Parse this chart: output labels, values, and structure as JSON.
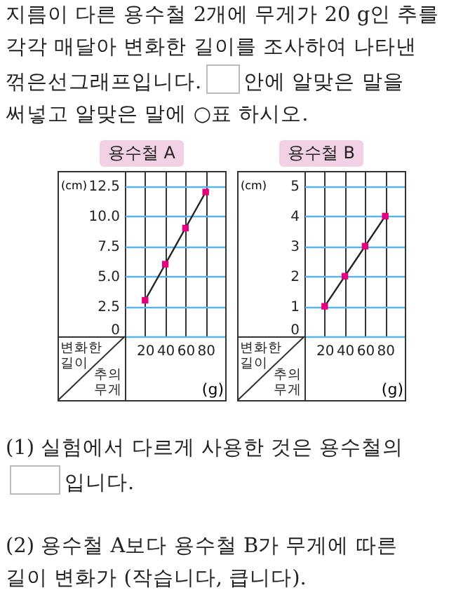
{
  "chart_data": [
    {
      "type": "line",
      "title": "용수철 A",
      "x": [
        20,
        40,
        60,
        80
      ],
      "series": [
        {
          "color": "#e4007f",
          "values": [
            3,
            6,
            9,
            12
          ]
        }
      ],
      "xlim": [
        0,
        100
      ],
      "xticks": [
        20,
        40,
        60,
        80
      ],
      "ylim": [
        0,
        13.75
      ],
      "yticks": [
        0,
        {
          "value": 2.5,
          "label": "2.5"
        },
        {
          "value": 5,
          "label": "5.0"
        },
        {
          "value": 7.5,
          "label": "7.5"
        },
        {
          "value": 10,
          "label": "10.0"
        },
        {
          "value": 12.5,
          "label": "12.5"
        }
      ],
      "xlabel": "(g)",
      "ylabel": "(cm)",
      "grid": true,
      "marker": "square",
      "annotations": [
        "변화한 길이",
        "추의 무게",
        "지름이 다른 용수철 2개에 무게가 20 g인 추를 각각 매달아 변화한 길이를 조사하여 나타낸 꺾은선그래프입니다.",
        "안에 알맞은 말을 써넣고 알맞은 말에 ○표 하시오."
      ]
    },
    {
      "type": "line",
      "title": "용수철 B",
      "x": [
        20,
        40,
        60,
        80
      ],
      "series": [
        {
          "color": "#e4007f",
          "values": [
            1,
            2,
            3,
            4
          ]
        }
      ],
      "xlim": [
        0,
        100
      ],
      "xticks": [
        20,
        40,
        60,
        80
      ],
      "ylim": [
        0,
        5.5
      ],
      "yticks": [
        0,
        1,
        2,
        3,
        4,
        5
      ],
      "xlabel": "(g)",
      "ylabel": "(cm)",
      "grid": true,
      "marker": "square",
      "annotations": [
        "변화한 길이",
        "추의 무게",
        "(1) 실험에서 다르게 사용한 것은 용수철의",
        "입니다.",
        "(2) 용수철 A보다 용수철 B가 무게에 따른 길이 변화가 (작습니다, 큽니다)."
      ]
    }
  ]
}
